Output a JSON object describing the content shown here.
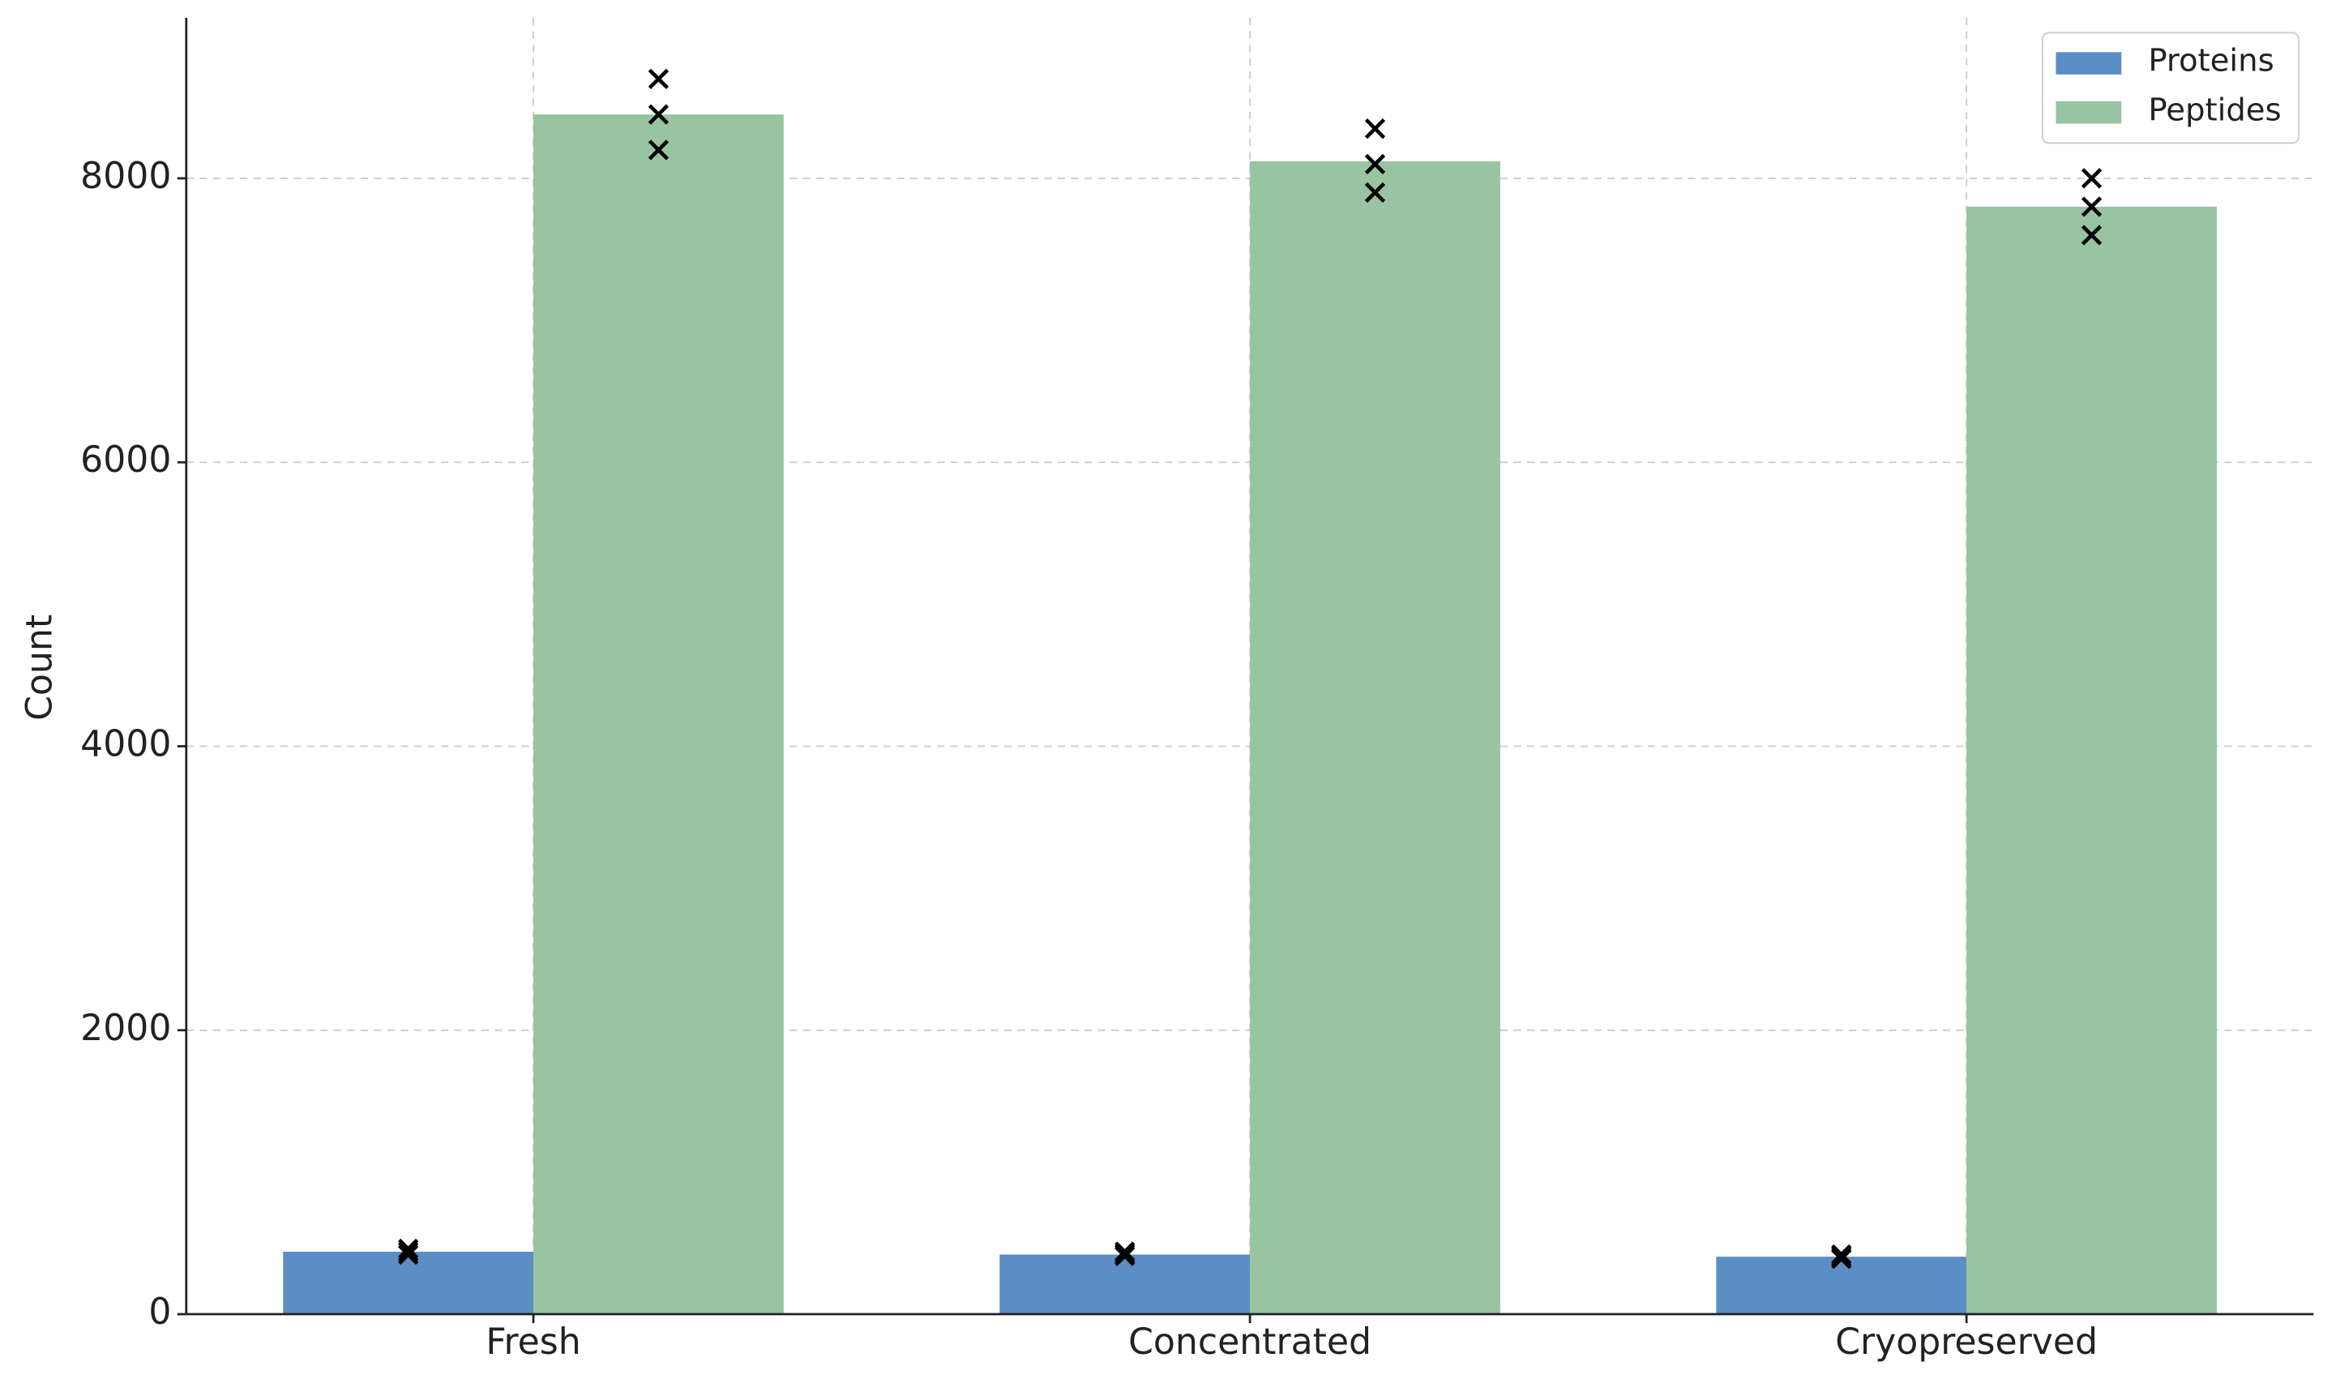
{
  "chart_data": {
    "type": "bar",
    "y_label": "Count",
    "categories": [
      "Fresh",
      "Concentrated",
      "Cryopreserved"
    ],
    "series": [
      {
        "name": "Proteins",
        "color": "#5b8ec4",
        "values": [
          440,
          420,
          405
        ],
        "replicates": [
          [
            420,
            440,
            460
          ],
          [
            410,
            425,
            440
          ],
          [
            390,
            405,
            420
          ]
        ]
      },
      {
        "name": "Peptides",
        "color": "#98c4a1",
        "values": [
          8450,
          8120,
          7800
        ],
        "replicates": [
          [
            8200,
            8450,
            8700
          ],
          [
            7900,
            8100,
            8350
          ],
          [
            7600,
            7800,
            8000
          ]
        ]
      }
    ],
    "ylim": [
      0,
      9130
    ],
    "yticks": [
      0,
      2000,
      4000,
      6000,
      8000
    ],
    "grid": true,
    "legend": "upper right"
  }
}
